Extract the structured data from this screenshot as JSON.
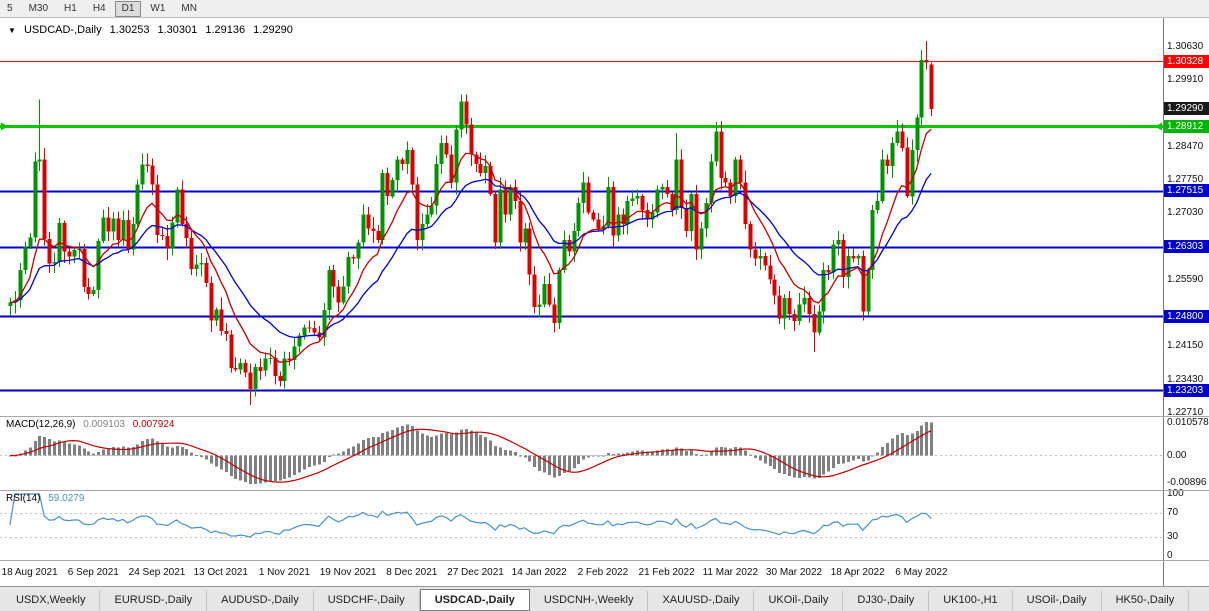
{
  "toolbar": {
    "timeframes": [
      "5",
      "M30",
      "H1",
      "H4",
      "D1",
      "W1",
      "MN"
    ],
    "active": "D1"
  },
  "chart": {
    "title": {
      "marker": "▼",
      "symbol": "USDCAD-,Daily",
      "open": "1.30253",
      "high": "1.30301",
      "low": "1.29136",
      "close": "1.29290"
    }
  },
  "indicators": {
    "macd": {
      "label": "MACD(12,26,9)",
      "value_main": "0.009103",
      "value_signal": "0.007924",
      "axis_max": "0.010578",
      "axis_zero": "0.00",
      "axis_min": "-0.00896"
    },
    "rsi": {
      "label": "RSI(14)",
      "value": "59.0279",
      "axis": [
        "100",
        "70",
        "30",
        "0"
      ],
      "levels": [
        70,
        30
      ]
    }
  },
  "price_axis": {
    "gridline_labels": [
      1.3063,
      1.2991,
      1.2847,
      1.2775,
      1.2703,
      1.2559,
      1.2415,
      1.2343,
      1.2271
    ],
    "badges": [
      {
        "text": "1.30328",
        "price": 1.30328,
        "bg": "#ff0000"
      },
      {
        "text": "1.29290",
        "price": 1.2929,
        "bg": "#1a1a1a"
      },
      {
        "text": "1.28912",
        "price": 1.28912,
        "bg": "#00b400"
      },
      {
        "text": "1.27515",
        "price": 1.27515,
        "bg": "#0000c8"
      },
      {
        "text": "1.26303",
        "price": 1.26303,
        "bg": "#0000c8"
      },
      {
        "text": "1.24800",
        "price": 1.248,
        "bg": "#0000c8"
      },
      {
        "text": "1.23203",
        "price": 1.23203,
        "bg": "#0000c8"
      }
    ]
  },
  "hlines": [
    {
      "price": 1.30328,
      "color": "#ff0000",
      "width": 1.4,
      "arrows": false
    },
    {
      "price": 1.28912,
      "color": "#00c800",
      "width": 3,
      "arrows": true
    },
    {
      "price": 1.27515,
      "color": "#0000c8",
      "width": 2,
      "arrows": false
    },
    {
      "price": 1.26303,
      "color": "#0000c8",
      "width": 2,
      "arrows": false
    },
    {
      "price": 1.248,
      "color": "#0000c8",
      "width": 2,
      "arrows": false
    },
    {
      "price": 1.23203,
      "color": "#0000c8",
      "width": 2,
      "arrows": false
    }
  ],
  "date_axis": {
    "labels": [
      {
        "text": "18 Aug 2021",
        "bar": 4
      },
      {
        "text": "6 Sep 2021",
        "bar": 17
      },
      {
        "text": "24 Sep 2021",
        "bar": 30
      },
      {
        "text": "13 Oct 2021",
        "bar": 43
      },
      {
        "text": "1 Nov 2021",
        "bar": 56
      },
      {
        "text": "19 Nov 2021",
        "bar": 69
      },
      {
        "text": "8 Dec 2021",
        "bar": 82
      },
      {
        "text": "27 Dec 2021",
        "bar": 95
      },
      {
        "text": "14 Jan 2022",
        "bar": 108
      },
      {
        "text": "2 Feb 2022",
        "bar": 121
      },
      {
        "text": "21 Feb 2022",
        "bar": 134
      },
      {
        "text": "11 Mar 2022",
        "bar": 147
      },
      {
        "text": "30 Mar 2022",
        "bar": 160
      },
      {
        "text": "18 Apr 2022",
        "bar": 173
      },
      {
        "text": "6 May 2022",
        "bar": 186
      }
    ]
  },
  "tabs": {
    "items": [
      {
        "label": "USDX,Weekly"
      },
      {
        "label": "EURUSD-,Daily"
      },
      {
        "label": "AUDUSD-,Daily"
      },
      {
        "label": "USDCHF-,Daily"
      },
      {
        "label": "USDCAD-,Daily",
        "active": true
      },
      {
        "label": "USDCNH-,Weekly"
      },
      {
        "label": "XAUUSD-,Daily"
      },
      {
        "label": "UKOil-,Daily"
      },
      {
        "label": "DJ30-,Daily"
      },
      {
        "label": "UK100-,H1"
      },
      {
        "label": "USOil-,Daily"
      },
      {
        "label": "HK50-,Daily"
      }
    ]
  },
  "chart_data": {
    "type": "candlestick",
    "symbol": "USDCAD-",
    "timeframe": "Daily",
    "current_ohlc": {
      "open": 1.30253,
      "high": 1.30301,
      "low": 1.29136,
      "close": 1.2929
    },
    "price_range": [
      1.2264,
      1.3126
    ],
    "ma_fast_period": 10,
    "ma_slow_period": 22,
    "closes": [
      1.251,
      1.2515,
      1.258,
      1.263,
      1.2651,
      1.2815,
      1.282,
      1.2647,
      1.2594,
      1.2598,
      1.2682,
      1.262,
      1.2609,
      1.2624,
      1.2626,
      1.2543,
      1.2528,
      1.2537,
      1.2643,
      1.2694,
      1.2664,
      1.2692,
      1.2645,
      1.2688,
      1.2625,
      1.268,
      1.2765,
      1.2809,
      1.2806,
      1.2765,
      1.2656,
      1.2654,
      1.2628,
      1.2683,
      1.2755,
      1.268,
      1.2649,
      1.2582,
      1.2592,
      1.2595,
      1.2552,
      1.2471,
      1.2495,
      1.2448,
      1.2441,
      1.2368,
      1.2365,
      1.2379,
      1.2358,
      1.2323,
      1.237,
      1.2362,
      1.2388,
      1.239,
      1.2351,
      1.234,
      1.2388,
      1.2385,
      1.2415,
      1.2438,
      1.2456,
      1.2455,
      1.2445,
      1.2434,
      1.2494,
      1.258,
      1.2545,
      1.251,
      1.2545,
      1.2608,
      1.2605,
      1.264,
      1.27,
      1.267,
      1.2665,
      1.2645,
      1.279,
      1.274,
      1.2775,
      1.282,
      1.281,
      1.284,
      1.2765,
      1.2645,
      1.268,
      1.27,
      1.272,
      1.281,
      1.2855,
      1.283,
      1.277,
      1.2885,
      1.2945,
      1.2895,
      1.283,
      1.281,
      1.279,
      1.2805,
      1.2745,
      1.264,
      1.2755,
      1.27,
      1.276,
      1.273,
      1.264,
      1.267,
      1.257,
      1.25,
      1.2505,
      1.255,
      1.2505,
      1.2465,
      1.258,
      1.2645,
      1.262,
      1.2665,
      1.2725,
      1.277,
      1.2705,
      1.269,
      1.267,
      1.2675,
      1.276,
      1.2655,
      1.27,
      1.268,
      1.273,
      1.2735,
      1.274,
      1.271,
      1.269,
      1.2705,
      1.2755,
      1.276,
      1.2745,
      1.271,
      1.282,
      1.2715,
      1.2665,
      1.2745,
      1.2625,
      1.267,
      1.2725,
      1.2815,
      1.288,
      1.278,
      1.277,
      1.274,
      1.282,
      1.277,
      1.268,
      1.2625,
      1.2605,
      1.261,
      1.259,
      1.256,
      1.2525,
      1.2475,
      1.252,
      1.2485,
      1.247,
      1.2505,
      1.252,
      1.2485,
      1.2445,
      1.249,
      1.258,
      1.2575,
      1.2635,
      1.2645,
      1.2565,
      1.261,
      1.2605,
      1.261,
      1.249,
      1.258,
      1.271,
      1.273,
      1.282,
      1.2805,
      1.2855,
      1.288,
      1.2845,
      1.274,
      1.284,
      1.291,
      1.3035,
      1.303,
      1.2929
    ],
    "overrides": {
      "6": {
        "h": 1.2949
      },
      "49": {
        "l": 1.2288
      },
      "136": {
        "h": 1.2877
      },
      "144": {
        "h": 1.2901
      },
      "164": {
        "l": 1.2403
      },
      "187": {
        "h": 1.3076
      },
      "188": {
        "o": 1.30253,
        "h": 1.30301,
        "l": 1.29136,
        "c": 1.2929
      }
    },
    "colors": {
      "up": "#009000",
      "down": "#d40000",
      "ma_fast": "#c00000",
      "ma_slow": "#0000c8",
      "macd_hist": "#808080",
      "macd_signal": "#c00000",
      "rsi_line": "#4a90c8",
      "levels": "#c0c0c0"
    }
  }
}
